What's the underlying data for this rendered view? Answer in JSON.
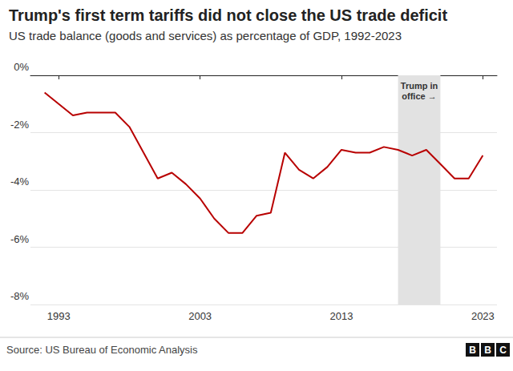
{
  "chart_data": {
    "type": "line",
    "title": "Trump's first term tariffs did not close the US trade deficit",
    "subtitle": "US trade balance (goods and services) as percentage of GDP, 1992-2023",
    "x": [
      1992,
      1993,
      1994,
      1995,
      1996,
      1997,
      1998,
      1999,
      2000,
      2001,
      2002,
      2003,
      2004,
      2005,
      2006,
      2007,
      2008,
      2009,
      2010,
      2011,
      2012,
      2013,
      2014,
      2015,
      2016,
      2017,
      2018,
      2019,
      2020,
      2021,
      2022,
      2023
    ],
    "values": [
      -0.6,
      -1.0,
      -1.4,
      -1.3,
      -1.3,
      -1.3,
      -1.8,
      -2.7,
      -3.6,
      -3.4,
      -3.8,
      -4.3,
      -5.0,
      -5.5,
      -5.5,
      -4.9,
      -4.8,
      -2.7,
      -3.3,
      -3.6,
      -3.2,
      -2.6,
      -2.7,
      -2.7,
      -2.5,
      -2.6,
      -2.8,
      -2.6,
      -3.1,
      -3.6,
      -3.6,
      -2.8
    ],
    "color": "#b80000",
    "xlim": [
      1991,
      2024
    ],
    "xticks": [
      1993,
      2003,
      2013,
      2023
    ],
    "ylim": [
      -8,
      0
    ],
    "yticks": [
      {
        "value": -8,
        "label": "-8%"
      },
      {
        "value": -6,
        "label": "-6%"
      },
      {
        "value": -4,
        "label": "-4%"
      },
      {
        "value": -2,
        "label": "-2%"
      },
      {
        "value": 0,
        "label": "0%"
      }
    ],
    "grid": true,
    "annotation": {
      "text": "Trump in\noffice →",
      "x": [
        2017,
        2020
      ]
    },
    "source": "Source: US Bureau of Economic Analysis",
    "logo": "BBC"
  }
}
